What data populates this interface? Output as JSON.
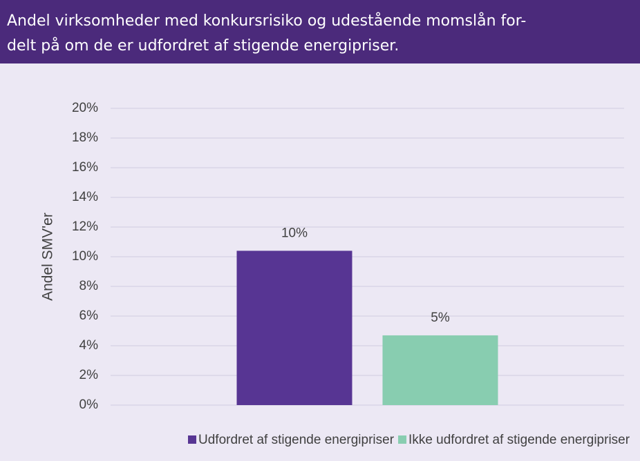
{
  "chart_data": {
    "type": "bar",
    "title": [
      "Andel virksomheder med konkursrisiko og udestående momslån for-",
      "delt på om de er udfordret af stigende energipriser."
    ],
    "y_label": "Andel SMV'er",
    "categories": [
      null
    ],
    "series": [
      {
        "name": "Udfordret af stigende energipriser",
        "color": "#573593",
        "values": [
          10.4
        ],
        "value_labels": [
          "10%"
        ]
      },
      {
        "name": "Ikke udfordret af stigende energipriser",
        "color": "#88cdb0",
        "values": [
          4.7
        ],
        "value_labels": [
          "5%"
        ]
      }
    ],
    "ylim": [
      0,
      20
    ],
    "yticks": [
      {
        "value": 0,
        "label": "0%"
      },
      {
        "value": 2,
        "label": "2%"
      },
      {
        "value": 4,
        "label": "4%"
      },
      {
        "value": 6,
        "label": "6%"
      },
      {
        "value": 8,
        "label": "8%"
      },
      {
        "value": 10,
        "label": "10%"
      },
      {
        "value": 12,
        "label": "12%"
      },
      {
        "value": 14,
        "label": "14%"
      },
      {
        "value": 16,
        "label": "16%"
      },
      {
        "value": 18,
        "label": "18%"
      },
      {
        "value": 20,
        "label": "20%"
      }
    ],
    "grid": true,
    "legend": "bottom"
  }
}
